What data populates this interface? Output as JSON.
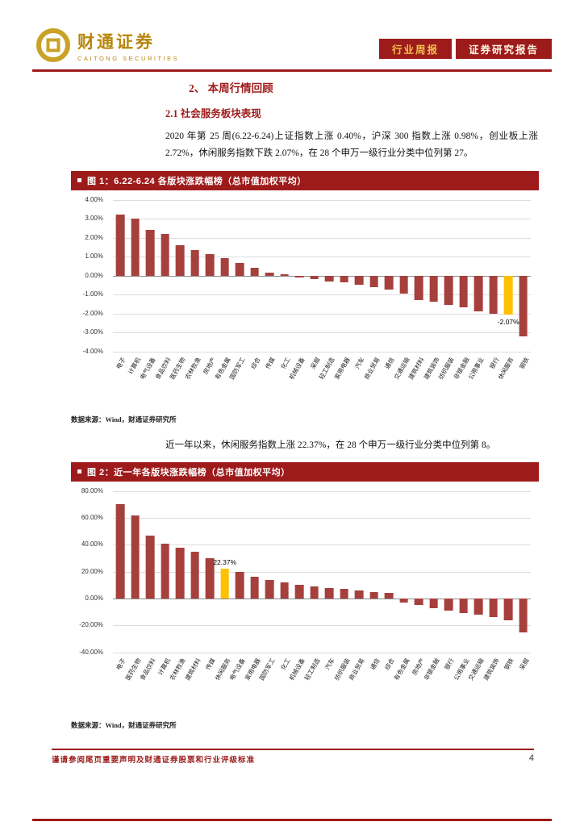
{
  "header": {
    "logo_cn": "财通证券",
    "logo_en": "CAITONG SECURITIES",
    "tag_left": "行业周报",
    "tag_right": "证券研究报告"
  },
  "content": {
    "section_title": "2、 本周行情回顾",
    "subsection_title": "2.1 社会服务板块表现",
    "paragraph_1": "2020 年第 25 周(6.22-6.24)上证指数上涨 0.40%，沪深 300 指数上涨 0.98%，创业板上涨 2.72%，休闲服务指数下跌 2.07%，在 28 个申万一级行业分类中位列第 27。",
    "paragraph_2": "近一年以来，休闲服务指数上涨 22.37%，在 28 个申万一级行业分类中位列第 8。"
  },
  "figure1": {
    "title": "图 1：6.22-6.24 各版块涨跌幅榜（总市值加权平均）",
    "source": "数据来源：Wind，财通证券研究所"
  },
  "figure2": {
    "title": "图 2：近一年各版块涨跌幅榜（总市值加权平均）",
    "source": "数据来源：Wind，财通证券研究所"
  },
  "footer": {
    "disclaimer": "谨请参阅尾页重要声明及财通证券股票和行业评级标准",
    "page_number": "4"
  },
  "colors": {
    "brand": "#9e1b1b",
    "bar": "#a6403d",
    "highlight": "#ffc000",
    "gold": "#c9a227"
  },
  "chart_data": [
    {
      "type": "bar",
      "title": "图 1：6.22-6.24 各版块涨跌幅榜（总市值加权平均）",
      "categories": [
        "电子",
        "计算机",
        "电气设备",
        "食品饮料",
        "医药生物",
        "农林牧渔",
        "房地产",
        "有色金属",
        "国防军工",
        "综合",
        "传媒",
        "化工",
        "机械设备",
        "采掘",
        "轻工制造",
        "家用电器",
        "汽车",
        "商业贸易",
        "通信",
        "交通运输",
        "建筑材料",
        "建筑装饰",
        "纺织服装",
        "非银金融",
        "公用事业",
        "银行",
        "休闲服务",
        "钢铁"
      ],
      "values": [
        3.2,
        3.0,
        2.4,
        2.2,
        1.6,
        1.35,
        1.15,
        0.9,
        0.65,
        0.4,
        0.15,
        0.05,
        -0.1,
        -0.2,
        -0.3,
        -0.35,
        -0.5,
        -0.6,
        -0.75,
        -0.95,
        -1.3,
        -1.4,
        -1.55,
        -1.7,
        -1.9,
        -2.0,
        -2.07,
        -3.2
      ],
      "highlight": {
        "index": 26,
        "label": "-2.07%",
        "label_position": "below"
      },
      "xlabel": "",
      "ylabel": "",
      "ylim": [
        -4,
        4
      ],
      "yticks": [
        4,
        3,
        2,
        1,
        0,
        -1,
        -2,
        -3,
        -4
      ],
      "grid": true,
      "legend": false
    },
    {
      "type": "bar",
      "title": "图 2：近一年各版块涨跌幅榜（总市值加权平均）",
      "categories": [
        "电子",
        "医药生物",
        "食品饮料",
        "计算机",
        "农林牧渔",
        "建筑材料",
        "传媒",
        "休闲服务",
        "电气设备",
        "家用电器",
        "国防军工",
        "化工",
        "机械设备",
        "轻工制造",
        "汽车",
        "纺织服装",
        "商业贸易",
        "通信",
        "综合",
        "有色金属",
        "房地产",
        "非银金融",
        "银行",
        "公用事业",
        "交通运输",
        "建筑装饰",
        "钢铁",
        "采掘"
      ],
      "values": [
        70,
        62,
        47,
        41,
        38,
        35,
        30,
        22.37,
        20,
        16,
        14,
        12,
        10,
        9,
        8,
        7,
        6,
        5,
        4,
        -3,
        -5,
        -7,
        -9,
        -11,
        -12,
        -14,
        -16,
        -25
      ],
      "highlight": {
        "index": 7,
        "label": "22.37%",
        "label_position": "above"
      },
      "xlabel": "",
      "ylabel": "",
      "ylim": [
        -40,
        80
      ],
      "yticks": [
        80,
        60,
        40,
        20,
        0,
        -20,
        -40
      ],
      "grid": true,
      "legend": false
    }
  ]
}
